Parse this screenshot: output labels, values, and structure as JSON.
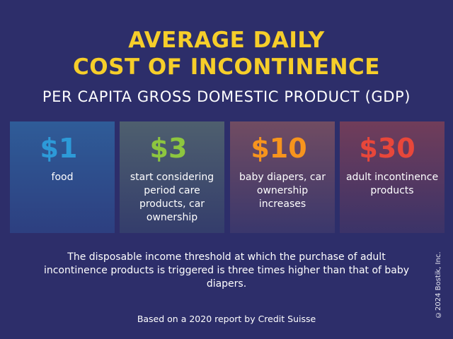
{
  "title": {
    "line1": "AVERAGE DAILY",
    "line2": "COST OF INCONTINENCE",
    "color": "#f6ce2a"
  },
  "subtitle": "PER CAPITA GROSS DOMESTIC PRODUCT (GDP)",
  "cards": [
    {
      "amount": "$1",
      "description": "food",
      "amount_color": "#2d9ad8"
    },
    {
      "amount": "$3",
      "description": "start considering period care products, car ownership",
      "amount_color": "#8dc63f"
    },
    {
      "amount": "$10",
      "description": "baby diapers, car ownership increases",
      "amount_color": "#f7941d"
    },
    {
      "amount": "$30",
      "description": "adult incontinence products",
      "amount_color": "#e8473a"
    }
  ],
  "body_text": "The disposable income threshold at which the purchase of adult incontinence products is triggered is three times higher than that of baby diapers.",
  "source": "Based on a 2020 report by Credit Suisse",
  "copyright": "©2024 Bostik, Inc.",
  "colors": {
    "background": "#2d2e6a",
    "title": "#f6ce2a",
    "text": "#ffffff"
  }
}
